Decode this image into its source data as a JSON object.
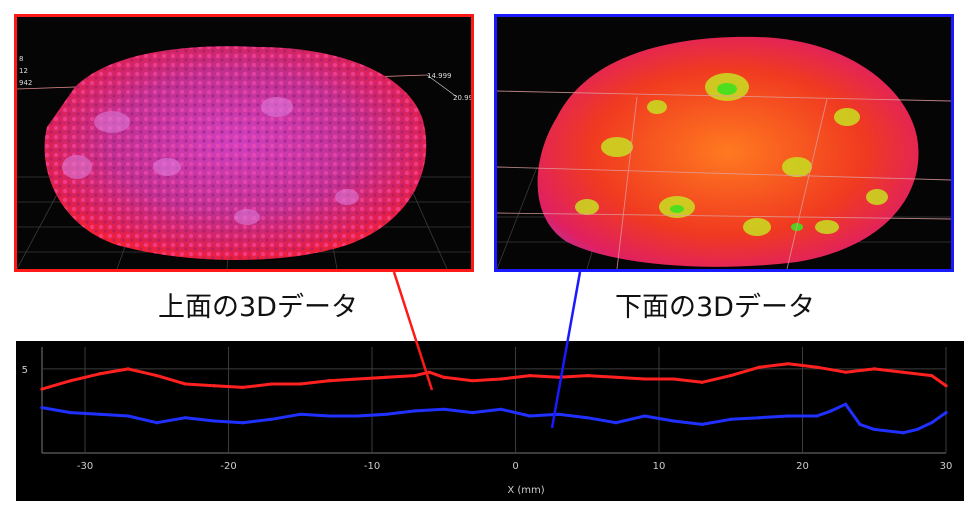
{
  "captions": {
    "top": "上面の3Dデータ",
    "bottom": "下面の3Dデータ"
  },
  "top_panel": {
    "readouts": [
      "14.999",
      "20.990"
    ],
    "left_ticks": [
      "8",
      "12",
      "942"
    ]
  },
  "colors": {
    "top_frame": "#ff1a1a",
    "bottom_frame": "#1a1aff",
    "top_profile": "#ff2020",
    "bottom_profile": "#2030ff"
  },
  "chart_data": {
    "type": "line",
    "xlabel": "X (mm)",
    "ylabel": "",
    "xlim": [
      -33,
      30
    ],
    "ylim": [
      0,
      6.3
    ],
    "x_ticks": [
      "-30",
      "-20",
      "-10",
      "0",
      "10",
      "20",
      "30"
    ],
    "x_tick_values": [
      -30,
      -20,
      -10,
      0,
      10,
      20,
      30
    ],
    "y_ticks": [
      "5"
    ],
    "y_tick_values": [
      5
    ],
    "grid": true,
    "series": [
      {
        "x": [
          -33,
          -31,
          -29,
          -27,
          -25,
          -23,
          -21,
          -19,
          -17,
          -15,
          -13,
          -11,
          -9,
          -7,
          -6,
          -5,
          -3,
          -1,
          1,
          3,
          5,
          7,
          9,
          11,
          13,
          15,
          17,
          19,
          21,
          23,
          25,
          27,
          29,
          30
        ],
        "y": [
          3.8,
          4.3,
          4.7,
          5.0,
          4.6,
          4.1,
          4.0,
          3.9,
          4.1,
          4.1,
          4.3,
          4.4,
          4.5,
          4.6,
          4.8,
          4.5,
          4.3,
          4.4,
          4.6,
          4.5,
          4.6,
          4.5,
          4.4,
          4.4,
          4.2,
          4.6,
          5.1,
          5.3,
          5.1,
          4.8,
          5.0,
          4.8,
          4.6,
          4.0
        ]
      },
      {
        "x": [
          -33,
          -31,
          -29,
          -27,
          -25,
          -23,
          -21,
          -19,
          -17,
          -15,
          -13,
          -11,
          -9,
          -7,
          -5,
          -3,
          -1,
          1,
          3,
          5,
          7,
          9,
          11,
          13,
          15,
          17,
          19,
          21,
          22,
          23,
          24,
          25,
          27,
          28,
          29,
          30
        ],
        "y": [
          2.7,
          2.4,
          2.3,
          2.2,
          1.8,
          2.1,
          1.9,
          1.8,
          2.0,
          2.3,
          2.2,
          2.2,
          2.3,
          2.5,
          2.6,
          2.4,
          2.6,
          2.2,
          2.3,
          2.1,
          1.8,
          2.2,
          1.9,
          1.7,
          2.0,
          2.1,
          2.2,
          2.2,
          2.5,
          2.9,
          1.7,
          1.4,
          1.2,
          1.4,
          1.8,
          2.4
        ]
      }
    ]
  }
}
